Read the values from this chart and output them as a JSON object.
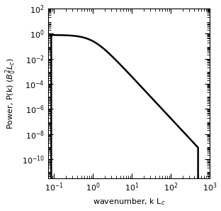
{
  "xlim": [
    0.07,
    1000
  ],
  "ylim": [
    3e-12,
    100.0
  ],
  "xlabel": "wavenumber, k L$_c$",
  "ylabel": "Power, P(k) ($B_0^2 L_c$)",
  "bg_color": "#ffffff",
  "line_color": "#000000",
  "line_width": 1.8,
  "k_start": 0.085,
  "k_bend": 1.0,
  "k_cutoff": 500.0,
  "P_flat": 0.8,
  "slope": -3.3333,
  "tick_label_size": 8,
  "axis_label_size": 8
}
